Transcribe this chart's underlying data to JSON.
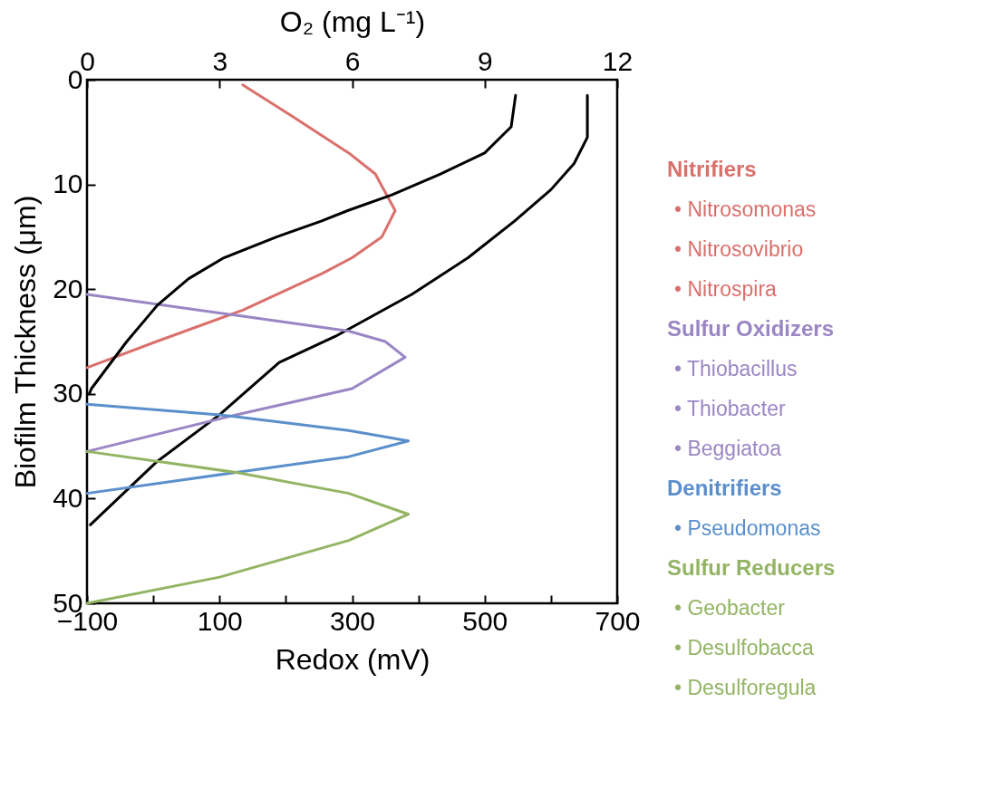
{
  "chart_data": {
    "type": "line",
    "xlabel": "Redox (mV)",
    "ylabel": "Biofilm Thickness (μm)",
    "x2label": "O₂ (mg L⁻¹)",
    "xlim": [
      -100,
      700
    ],
    "xticks": [
      {
        "value": -100,
        "label": "−100"
      },
      {
        "value": 0,
        "label": null
      },
      100,
      {
        "value": 200,
        "label": null
      },
      300,
      {
        "value": 400,
        "label": null
      },
      500,
      {
        "value": 600,
        "label": null
      },
      700
    ],
    "x2lim": [
      0,
      12
    ],
    "x2ticks": [
      0,
      3,
      6,
      9,
      12
    ],
    "ylim": [
      50,
      0
    ],
    "yticks": [
      0,
      10,
      20,
      30,
      40,
      50
    ],
    "grid": false,
    "legend": "right",
    "line_style": "solid",
    "marker": "none",
    "series": [
      {
        "color": "#000000",
        "axis": "x2",
        "x": [
          9.7,
          9.6,
          9.0,
          8.0,
          6.9,
          5.9,
          5.3,
          4.3,
          3.1,
          2.3,
          1.6,
          1.4,
          0.9,
          0.1,
          0.05
        ],
        "values": [
          1.5,
          4.5,
          7,
          9,
          11,
          12.5,
          13.5,
          15,
          17,
          19,
          21.5,
          22.5,
          25,
          29.5,
          30
        ]
      },
      {
        "color": "#000000",
        "x": [
          655,
          655,
          635,
          600,
          545,
          475,
          390,
          275,
          190,
          100,
          5,
          -95
        ],
        "values": [
          1.5,
          5.5,
          8,
          10.5,
          13.5,
          17,
          20.5,
          24.5,
          27,
          32,
          36.5,
          42.5
        ]
      },
      {
        "name": "Nitrifiers\n• Nitrosomonas\n• Nitrosovibrio\n• Nitrospira",
        "color": "#d9706c",
        "x": [
          135,
          210,
          295,
          335,
          365,
          345,
          300,
          255,
          135,
          5,
          -100
        ],
        "values": [
          0.5,
          3.5,
          7,
          9,
          12.5,
          15,
          17,
          18.5,
          22,
          25,
          27.5
        ]
      },
      {
        "name": "Sulfur Oxidizers\n• Thiobacillus\n• Thiobacter\n• Beggiatoa",
        "color": "#9a86c4",
        "x": [
          -100,
          125,
          295,
          350,
          380,
          300,
          125,
          -100
        ],
        "values": [
          20.5,
          22.5,
          24,
          25,
          26.5,
          29.5,
          32,
          35.5
        ]
      },
      {
        "name": "Denitrifiers\n• Pseudomonas",
        "color": "#5b8fcc",
        "x": [
          -100,
          100,
          295,
          385,
          295,
          125,
          -100
        ],
        "values": [
          31,
          32,
          33.5,
          34.5,
          36,
          37.5,
          39.5
        ]
      },
      {
        "name": "Sulfur Reducers\n• Geobacter\n• Desulfobacca\n• Desulforegula",
        "color": "#93b563",
        "x": [
          -100,
          125,
          295,
          385,
          295,
          100,
          -100
        ],
        "values": [
          35.5,
          37.5,
          39.5,
          41.5,
          44,
          47.5,
          50
        ]
      }
    ]
  }
}
